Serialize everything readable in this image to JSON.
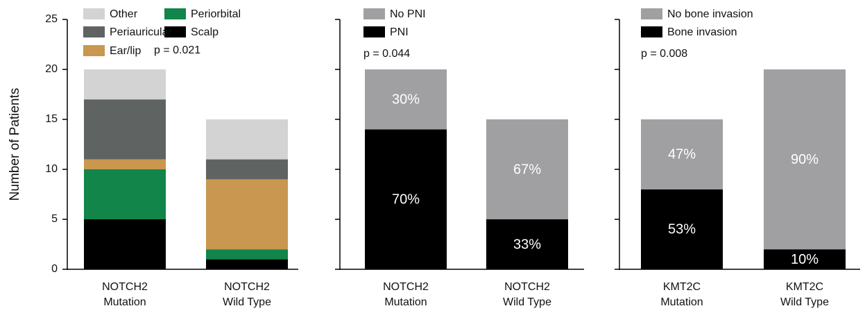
{
  "chart_data": [
    {
      "type": "bar",
      "stacked": true,
      "ylabel": "Number of Patients",
      "categories": [
        [
          "NOTCH2",
          "Mutation"
        ],
        [
          "NOTCH2",
          "Wild Type"
        ]
      ],
      "ylim": [
        0,
        25
      ],
      "yticks": [
        0,
        5,
        10,
        15,
        20,
        25
      ],
      "ytick_labels": true,
      "annotation": "p = 0.021",
      "series": [
        {
          "name": "Scalp",
          "color": "#000000",
          "values": [
            5,
            1
          ]
        },
        {
          "name": "Periorbital",
          "color": "#11854a",
          "values": [
            5,
            1
          ]
        },
        {
          "name": "Ear/lip",
          "color": "#c9974f",
          "values": [
            1,
            7
          ]
        },
        {
          "name": "Periauricular",
          "color": "#5f6462",
          "values": [
            6,
            2
          ]
        },
        {
          "name": "Other",
          "color": "#d3d3d3",
          "values": [
            3,
            4
          ]
        }
      ]
    },
    {
      "type": "bar",
      "stacked": true,
      "categories": [
        [
          "NOTCH2",
          "Mutation"
        ],
        [
          "NOTCH2",
          "Wild Type"
        ]
      ],
      "ylim": [
        0,
        25
      ],
      "yticks": [
        0,
        5,
        10,
        15,
        20,
        25
      ],
      "ytick_labels": false,
      "annotation": "p = 0.044",
      "series": [
        {
          "name": "PNI",
          "color": "#000000",
          "values": [
            14,
            5
          ],
          "value_labels": [
            "70%",
            "33%"
          ]
        },
        {
          "name": "No PNI",
          "color": "#a0a0a3",
          "values": [
            6,
            10
          ],
          "value_labels": [
            "30%",
            "67%"
          ]
        }
      ]
    },
    {
      "type": "bar",
      "stacked": true,
      "categories": [
        [
          "KMT2C",
          "Mutation"
        ],
        [
          "KMT2C",
          "Wild Type"
        ]
      ],
      "ylim": [
        0,
        25
      ],
      "yticks": [
        0,
        5,
        10,
        15,
        20,
        25
      ],
      "ytick_labels": false,
      "annotation": "p = 0.008",
      "series": [
        {
          "name": "Bone invasion",
          "color": "#000000",
          "values": [
            8,
            2
          ],
          "value_labels": [
            "53%",
            "10%"
          ]
        },
        {
          "name": "No bone invasion",
          "color": "#a0a0a3",
          "values": [
            7,
            18
          ],
          "value_labels": [
            "47%",
            "90%"
          ]
        }
      ]
    }
  ]
}
